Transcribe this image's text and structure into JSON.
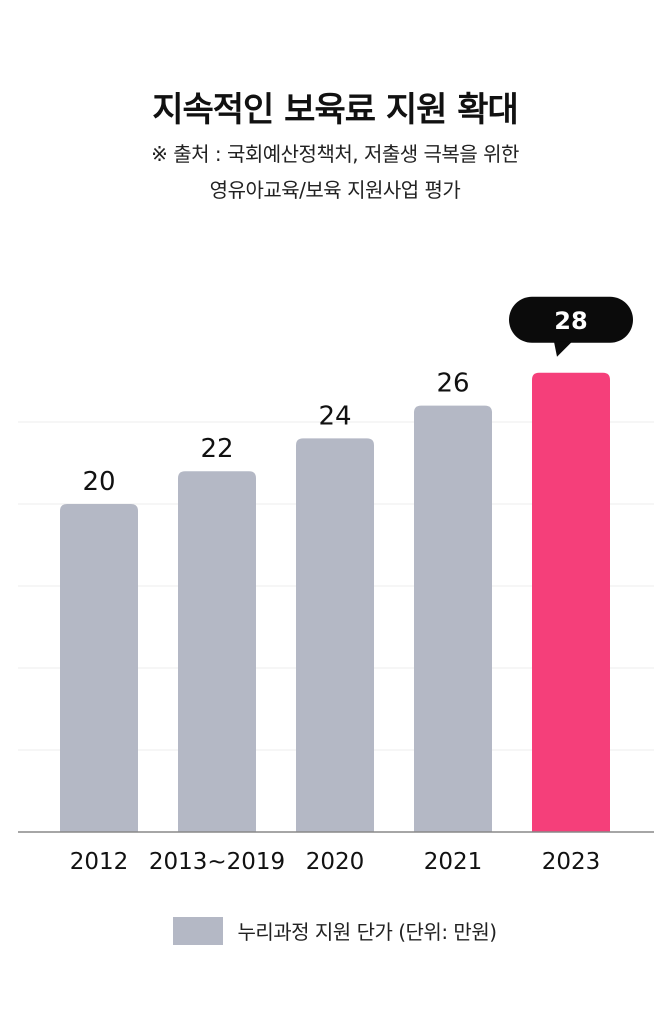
{
  "chart_data": {
    "type": "bar",
    "title": "지속적인 보육료 지원 확대",
    "subtitle_lines": [
      "※ 출처 : 국회예산정책처, 저출생 극복을 위한",
      "영유아교육/보육 지원사업 평가"
    ],
    "categories": [
      "2012",
      "2013~2019",
      "2020",
      "2021",
      "2023"
    ],
    "series": [
      {
        "name": "누리과정 지원 단가 (단위: 만원)",
        "values": [
          20,
          22,
          24,
          26,
          28
        ]
      }
    ],
    "highlight_index": 4,
    "highlight_label": "28",
    "xlabel": "",
    "ylabel": "",
    "ylim": [
      0,
      30
    ],
    "grid": true,
    "legend_position": "bottom"
  },
  "colors": {
    "bar": "#b4b8c5",
    "highlight": "#f53f7a",
    "bubble": "#0b0b0b",
    "grid": "#ececec",
    "axis": "#888888"
  }
}
